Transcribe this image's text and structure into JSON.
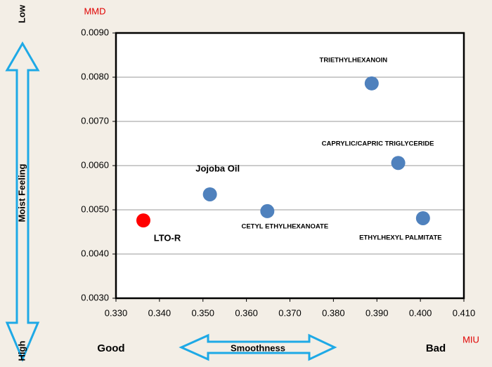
{
  "chart_data": {
    "type": "scatter",
    "x": [
      0.3363,
      0.3516,
      0.3648,
      0.3888,
      0.3949,
      0.4006
    ],
    "values": [
      0.00476,
      0.00535,
      0.00497,
      0.00786,
      0.00606,
      0.00481
    ],
    "labels": [
      "LTO-R",
      "Jojoba Oil",
      "CETYL ETHYLHEXANOATE",
      "TRIETHYLHEXANOIN",
      "CAPRYLIC/CAPRIC TRIGLYCERIDE",
      "ETHYLHEXYL PALMITATE"
    ],
    "colors": [
      "#ff0000",
      "#4f81bd",
      "#4f81bd",
      "#4f81bd",
      "#4f81bd",
      "#4f81bd"
    ],
    "xlim": [
      0.33,
      0.41
    ],
    "xticks": [
      {
        "value": 0.33,
        "label": "0.330"
      },
      {
        "value": 0.34,
        "label": "0.340"
      },
      {
        "value": 0.35,
        "label": "0.350"
      },
      {
        "value": 0.36,
        "label": "0.360"
      },
      {
        "value": 0.37,
        "label": "0.370"
      },
      {
        "value": 0.38,
        "label": "0.380"
      },
      {
        "value": 0.39,
        "label": "0.390"
      },
      {
        "value": 0.4,
        "label": "0.400"
      },
      {
        "value": 0.41,
        "label": "0.410"
      }
    ],
    "ylim": [
      0.003,
      0.009
    ],
    "yticks": [
      {
        "value": 0.003,
        "label": "0.0030"
      },
      {
        "value": 0.004,
        "label": "0.0040"
      },
      {
        "value": 0.005,
        "label": "0.0050"
      },
      {
        "value": 0.006,
        "label": "0.0060"
      },
      {
        "value": 0.007,
        "label": "0.0070"
      },
      {
        "value": 0.008,
        "label": "0.0080"
      },
      {
        "value": 0.009,
        "label": "0.0090"
      }
    ],
    "grid": true,
    "y_unit": "MMD",
    "x_unit": "MIU",
    "y_axis_label": "Moist Feeling",
    "y_top": "Low",
    "y_bottom": "High",
    "x_axis_label": "Smoothness",
    "x_left": "Good",
    "x_right": "Bad"
  }
}
